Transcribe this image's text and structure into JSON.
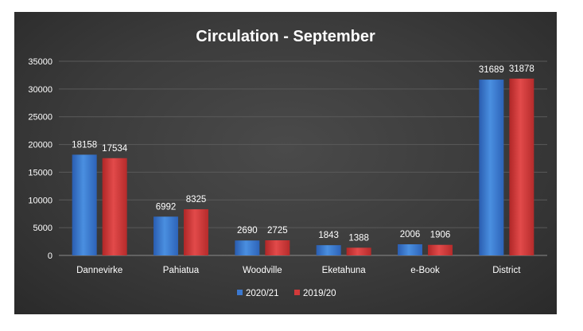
{
  "chart_data": {
    "type": "bar",
    "title": "Circulation - September",
    "categories": [
      "Dannevirke",
      "Pahiatua",
      "Woodville",
      "Eketahuna",
      "e-Book",
      "District"
    ],
    "series": [
      {
        "name": "2020/21",
        "values": [
          18158,
          6992,
          2690,
          1843,
          2006,
          31689
        ],
        "color": "#3b78cf"
      },
      {
        "name": "2019/20",
        "values": [
          17534,
          8325,
          2725,
          1388,
          1906,
          31878
        ],
        "color": "#d23a3a"
      }
    ],
    "ylim": [
      0,
      35000
    ],
    "yticks": [
      0,
      5000,
      10000,
      15000,
      20000,
      25000,
      30000,
      35000
    ],
    "ytick_labels": [
      "0",
      "5000",
      "10000",
      "15000",
      "20000",
      "25000",
      "30000",
      "35000"
    ],
    "grid": true,
    "legend_position": "bottom",
    "xlabel": "",
    "ylabel": ""
  }
}
